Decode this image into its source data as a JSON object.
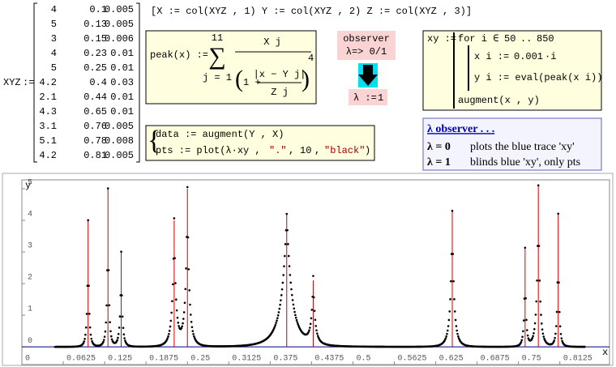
{
  "matrix": {
    "name": "XYZ",
    "assign": ":=",
    "rows": [
      [
        4,
        0.1,
        0.005
      ],
      [
        5,
        0.13,
        0.005
      ],
      [
        3,
        0.15,
        0.006
      ],
      [
        4,
        0.23,
        0.01
      ],
      [
        5,
        0.25,
        0.01
      ],
      [
        4.2,
        0.4,
        0.03
      ],
      [
        2.1,
        0.44,
        0.01
      ],
      [
        4.3,
        0.65,
        0.01
      ],
      [
        3.1,
        0.76,
        0.005
      ],
      [
        5.1,
        0.78,
        0.008
      ],
      [
        4.2,
        0.81,
        0.005
      ]
    ]
  },
  "columns": "[X := col(XYZ , 1)  Y := col(XYZ , 2)  Z := col(XYZ , 3)]",
  "peak": {
    "head": "peak(x) :=",
    "sum_top": 11,
    "sum_bottom": "j = 1",
    "numerator": "X j",
    "one_plus": "1 +",
    "inner_num": "|x − Y j|",
    "inner_den": "Z j",
    "power": 4
  },
  "observer": {
    "line1": "observer",
    "line2": "λ=> 0/1",
    "assign": "λ :=",
    "lambda": 1
  },
  "program": {
    "head": "xy :=",
    "for": "for i ∈",
    "from": 50,
    "range_sep": "..",
    "to": 850,
    "x_assign": "x i :=",
    "step": 0.001,
    "step_suffix": "·i",
    "y_assign": "y i := eval(peak(x i))",
    "result": "augment(x , y)"
  },
  "plot_defs": {
    "data": "data := augment(Y , X)",
    "pts_head": "pts := plot(λ·xy ,",
    "pts_dot": "\".\"",
    "pts_sep1": ",",
    "pts_size": 10,
    "pts_sep2": ",",
    "pts_color": "\"black\"",
    "pts_end": ")"
  },
  "note": {
    "title": "λ observer . . .",
    "rows": [
      {
        "lambda": "λ = 0",
        "text": "plots the blue trace 'xy'"
      },
      {
        "lambda": "λ = 1",
        "text": "blinds blue 'xy', only pts"
      }
    ]
  },
  "chart_data": {
    "type": "stem",
    "x_label": "x",
    "y_label": "y",
    "xlim": [
      0,
      0.8875
    ],
    "ylim": [
      -0.56,
      5.28
    ],
    "xticks": [
      0,
      0.0625,
      0.125,
      0.1875,
      0.25,
      0.3125,
      0.375,
      0.4375,
      0.5,
      0.5625,
      0.625,
      0.6875,
      0.75,
      0.8125
    ],
    "yticks": [
      0,
      1,
      2,
      3,
      4,
      5
    ],
    "stem_color": "#cc0000",
    "point_color": "#000000",
    "axis_color": "#000080"
  }
}
